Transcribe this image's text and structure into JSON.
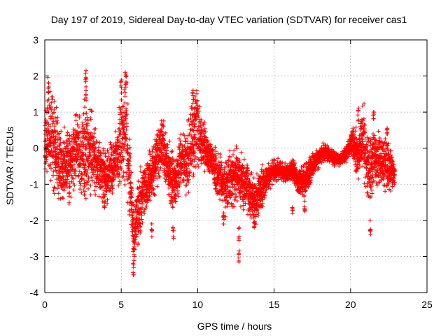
{
  "chart_data": {
    "type": "scatter",
    "title": "Day 197 of 2019, Sidereal Day-to-day VTEC variation (SDTVAR) for receiver cas1",
    "xlabel": "GPS time / hours",
    "ylabel": "SDTVAR / TECUs",
    "xlim": [
      0,
      25
    ],
    "ylim": [
      -4,
      3
    ],
    "xticks": [
      "0",
      "5",
      "10",
      "15",
      "20",
      "25"
    ],
    "yticks": [
      "-4",
      "-3",
      "-2",
      "-1",
      "0",
      "1",
      "2",
      "3"
    ],
    "grid": true,
    "marker": "plus",
    "series": [
      {
        "name": "SDTVAR",
        "color": "#ff0000",
        "note": "Dense point cloud (~ one point per 30 s); representative control points listed as [hour, TECU]; extent = scatter envelope at each hour",
        "trend": [
          [
            0.0,
            0.1
          ],
          [
            0.3,
            0.5
          ],
          [
            0.5,
            0.3
          ],
          [
            0.8,
            -0.2
          ],
          [
            1.1,
            -0.6
          ],
          [
            1.5,
            -0.5
          ],
          [
            1.8,
            -0.2
          ],
          [
            2.0,
            0.0
          ],
          [
            2.4,
            -0.2
          ],
          [
            2.8,
            0.0
          ],
          [
            3.2,
            -0.3
          ],
          [
            3.6,
            -0.6
          ],
          [
            4.0,
            -0.9
          ],
          [
            4.3,
            -0.6
          ],
          [
            4.7,
            -0.2
          ],
          [
            5.0,
            0.2
          ],
          [
            5.3,
            0.6
          ],
          [
            5.5,
            -0.5
          ],
          [
            5.8,
            -2.4
          ],
          [
            6.1,
            -1.8
          ],
          [
            6.5,
            -1.2
          ],
          [
            6.9,
            -0.8
          ],
          [
            7.3,
            -0.4
          ],
          [
            7.7,
            0.2
          ],
          [
            8.1,
            -0.6
          ],
          [
            8.5,
            -1.0
          ],
          [
            8.9,
            -0.3
          ],
          [
            9.3,
            -0.5
          ],
          [
            9.6,
            0.3
          ],
          [
            10.0,
            0.5
          ],
          [
            10.3,
            0.1
          ],
          [
            10.7,
            -0.2
          ],
          [
            11.0,
            -0.5
          ],
          [
            11.4,
            -0.7
          ],
          [
            11.8,
            -1.1
          ],
          [
            12.2,
            -0.9
          ],
          [
            12.6,
            -0.7
          ],
          [
            13.0,
            -0.9
          ],
          [
            13.4,
            -1.3
          ],
          [
            13.8,
            -1.5
          ],
          [
            14.2,
            -1.1
          ],
          [
            14.6,
            -0.8
          ],
          [
            15.0,
            -0.6
          ],
          [
            15.4,
            -0.6
          ],
          [
            15.8,
            -0.7
          ],
          [
            16.2,
            -0.6
          ],
          [
            16.6,
            -0.9
          ],
          [
            17.0,
            -0.9
          ],
          [
            17.4,
            -0.6
          ],
          [
            17.8,
            -0.3
          ],
          [
            18.2,
            -0.1
          ],
          [
            18.6,
            -0.2
          ],
          [
            19.0,
            -0.3
          ],
          [
            19.4,
            -0.3
          ],
          [
            19.8,
            -0.1
          ],
          [
            20.1,
            0.2
          ],
          [
            20.5,
            -0.2
          ],
          [
            20.8,
            0.3
          ],
          [
            21.2,
            -0.6
          ],
          [
            21.6,
            -0.2
          ],
          [
            22.0,
            -0.4
          ],
          [
            22.4,
            -0.4
          ],
          [
            22.9,
            -0.8
          ]
        ],
        "extent": [
          [
            0.0,
            0.8
          ],
          [
            0.3,
            1.2
          ],
          [
            0.6,
            1.1
          ],
          [
            1.0,
            0.9
          ],
          [
            1.4,
            0.8
          ],
          [
            1.8,
            0.7
          ],
          [
            2.2,
            0.9
          ],
          [
            2.6,
            1.4
          ],
          [
            3.0,
            0.9
          ],
          [
            3.4,
            0.7
          ],
          [
            3.8,
            0.6
          ],
          [
            4.2,
            0.6
          ],
          [
            4.6,
            0.6
          ],
          [
            5.0,
            1.0
          ],
          [
            5.3,
            1.2
          ],
          [
            5.6,
            1.0
          ],
          [
            5.9,
            0.8
          ],
          [
            6.2,
            0.8
          ],
          [
            6.6,
            0.6
          ],
          [
            7.0,
            0.6
          ],
          [
            7.4,
            0.7
          ],
          [
            7.8,
            0.6
          ],
          [
            8.2,
            0.7
          ],
          [
            8.6,
            0.7
          ],
          [
            9.0,
            0.6
          ],
          [
            9.4,
            0.8
          ],
          [
            9.8,
            1.0
          ],
          [
            10.1,
            0.7
          ],
          [
            10.5,
            0.5
          ],
          [
            10.9,
            0.4
          ],
          [
            11.3,
            0.6
          ],
          [
            11.7,
            0.7
          ],
          [
            12.1,
            0.7
          ],
          [
            12.5,
            0.6
          ],
          [
            12.9,
            0.6
          ],
          [
            13.3,
            0.6
          ],
          [
            13.7,
            0.7
          ],
          [
            14.1,
            0.5
          ],
          [
            14.5,
            0.3
          ],
          [
            15.0,
            0.25
          ],
          [
            15.5,
            0.2
          ],
          [
            16.0,
            0.2
          ],
          [
            16.5,
            0.3
          ],
          [
            17.0,
            0.4
          ],
          [
            17.5,
            0.3
          ],
          [
            18.0,
            0.2
          ],
          [
            18.5,
            0.2
          ],
          [
            19.0,
            0.15
          ],
          [
            19.5,
            0.15
          ],
          [
            20.0,
            0.25
          ],
          [
            20.5,
            0.6
          ],
          [
            20.8,
            0.7
          ],
          [
            21.2,
            0.9
          ],
          [
            21.6,
            0.6
          ],
          [
            22.0,
            0.7
          ],
          [
            22.5,
            0.5
          ],
          [
            22.9,
            0.4
          ]
        ],
        "spikes": [
          [
            0.25,
            1.8
          ],
          [
            2.7,
            2.15
          ],
          [
            2.7,
            1.6
          ],
          [
            5.3,
            2.05
          ],
          [
            5.0,
            1.85
          ],
          [
            5.8,
            -3.5
          ],
          [
            5.85,
            -3.0
          ],
          [
            9.7,
            1.6
          ],
          [
            12.7,
            -3.15
          ],
          [
            12.7,
            -2.55
          ],
          [
            8.4,
            -2.45
          ],
          [
            7.0,
            -2.45
          ],
          [
            1.6,
            -1.5
          ],
          [
            3.9,
            -1.65
          ],
          [
            11.7,
            -2.1
          ],
          [
            13.7,
            -2.2
          ],
          [
            16.2,
            -1.8
          ],
          [
            17.0,
            -1.75
          ],
          [
            21.3,
            -2.3
          ],
          [
            20.5,
            1.05
          ],
          [
            21.5,
            1.0
          ],
          [
            22.4,
            0.55
          ],
          [
            2.6,
            -1.3
          ],
          [
            4.8,
            -0.8
          ],
          [
            9.8,
            1.1
          ]
        ]
      }
    ]
  }
}
